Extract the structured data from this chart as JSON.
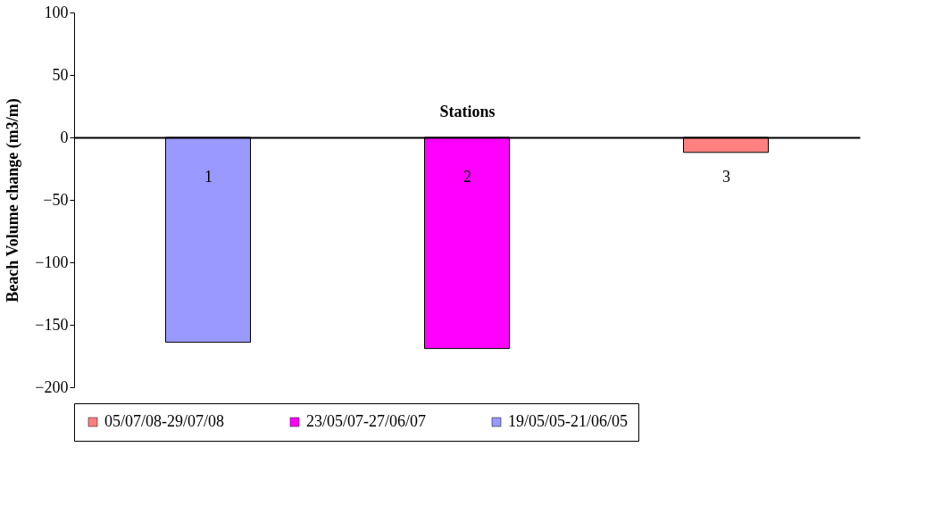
{
  "chart_data": {
    "type": "bar",
    "xlabel": "Stations",
    "ylabel": "Beach Volume change (m3/m)",
    "categories": [
      "1",
      "2",
      "3"
    ],
    "series": [
      {
        "name": "05/07/08-29/07/08",
        "color": "#ff8080",
        "values": [
          null,
          null,
          -12
        ]
      },
      {
        "name": "23/05/07-27/06/07",
        "color": "#ff00ff",
        "values": [
          null,
          -169,
          null
        ]
      },
      {
        "name": "19/05/05-21/06/05",
        "color": "#9999ff",
        "values": [
          -164,
          null,
          null
        ]
      }
    ],
    "ylim": [
      -200,
      100
    ],
    "yticks": [
      -200,
      -150,
      -100,
      -50,
      0,
      50,
      100
    ],
    "grid": false,
    "legend": "bottom"
  }
}
